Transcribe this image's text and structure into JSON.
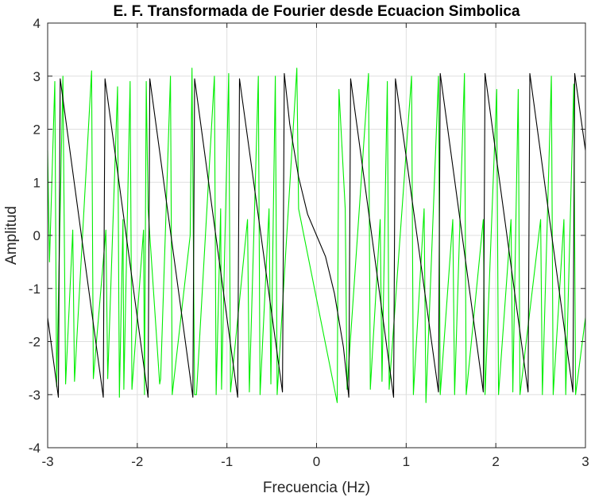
{
  "chart_data": {
    "type": "line",
    "title": "E. F. Transformada de Fourier desde Ecuacion Simbolica",
    "xlabel": "Frecuencia (Hz)",
    "ylabel": "Amplitud",
    "xlim": [
      -3,
      3
    ],
    "ylim": [
      -4,
      4
    ],
    "xticks": [
      -3,
      -2,
      -1,
      0,
      1,
      2,
      3
    ],
    "yticks": [
      -4,
      -3,
      -2,
      -1,
      0,
      1,
      2,
      3,
      4
    ],
    "xtick_labels": [
      "-3",
      "-2",
      "-1",
      "0",
      "1",
      "2",
      "3"
    ],
    "ytick_labels": [
      "-4",
      "-3",
      "-2",
      "-1",
      "0",
      "1",
      "2",
      "3",
      "4"
    ],
    "grid": true,
    "series": [
      {
        "color": "#00ee00",
        "x": [
          -3.0,
          -2.98,
          -2.92,
          -2.9,
          -2.83,
          -2.8,
          -2.72,
          -2.7,
          -2.51,
          -2.49,
          -2.35,
          -2.33,
          -2.22,
          -2.2,
          -2.16,
          -2.15,
          -2.08,
          -2.06,
          -1.93,
          -1.92,
          -1.9,
          -1.88,
          -1.75,
          -1.74,
          -1.63,
          -1.61,
          -1.41,
          -1.39,
          -1.36,
          -1.34,
          -1.14,
          -1.12,
          -1.07,
          -1.06,
          -0.98,
          -0.96,
          -0.77,
          -0.75,
          -0.65,
          -0.63,
          -0.53,
          -0.51,
          -0.46,
          -0.44,
          -0.22,
          -0.2,
          0.23,
          0.25,
          0.32,
          0.34,
          0.58,
          0.6,
          0.71,
          0.73,
          0.79,
          0.81,
          1.06,
          1.08,
          1.2,
          1.22,
          1.36,
          1.38,
          1.52,
          1.54,
          1.65,
          1.67,
          1.86,
          1.88,
          2.01,
          2.03,
          2.17,
          2.19,
          2.25,
          2.27,
          2.5,
          2.52,
          2.62,
          2.64,
          2.76,
          2.78,
          2.87,
          2.89,
          3.0
        ],
        "y": [
          1.6,
          -0.5,
          2.9,
          -2.85,
          3.0,
          -2.8,
          0.1,
          -2.75,
          3.1,
          -2.7,
          0.1,
          -2.7,
          2.8,
          -3.05,
          0.3,
          -2.9,
          2.9,
          -2.9,
          0.1,
          -3.0,
          2.9,
          0.5,
          -2.8,
          -2.7,
          3.0,
          -3.0,
          0.0,
          3.15,
          -3.0,
          -3.0,
          3.0,
          -3.0,
          0.5,
          -2.9,
          3.05,
          -2.95,
          0.3,
          -2.95,
          3.0,
          -3.0,
          0.5,
          -2.8,
          3.0,
          -3.0,
          3.15,
          0.5,
          -3.15,
          2.75,
          0.5,
          -2.9,
          3.05,
          -2.9,
          0.3,
          -2.75,
          2.9,
          -2.9,
          3.0,
          -3.0,
          0.5,
          -3.15,
          3.0,
          -3.0,
          0.3,
          -3.0,
          3.05,
          -3.0,
          0.3,
          -3.0,
          2.75,
          -3.0,
          0.3,
          -2.95,
          2.75,
          -3.0,
          0.3,
          -3.0,
          3.0,
          -3.0,
          0.3,
          -3.0,
          2.85,
          -3.0,
          -1.55
        ]
      },
      {
        "color": "#000000",
        "x": [
          -3.0,
          -2.88,
          -2.86,
          -2.38,
          -2.36,
          -1.88,
          -1.86,
          -1.38,
          -1.36,
          -0.88,
          -0.86,
          -0.38,
          -0.36,
          -0.3,
          -0.2,
          -0.1,
          0.0,
          0.1,
          0.2,
          0.3,
          0.36,
          0.38,
          0.86,
          0.88,
          1.36,
          1.38,
          1.86,
          1.88,
          2.36,
          2.38,
          2.86,
          2.88,
          3.0
        ],
        "y": [
          -1.55,
          -3.05,
          2.95,
          -3.05,
          2.95,
          -3.05,
          2.95,
          -3.05,
          2.95,
          -3.05,
          2.95,
          -2.95,
          3.05,
          2.1,
          1.1,
          0.4,
          0.0,
          -0.4,
          -1.1,
          -2.1,
          -3.05,
          2.95,
          -3.05,
          2.95,
          -2.95,
          3.05,
          -2.95,
          3.05,
          -2.95,
          3.05,
          -2.95,
          3.05,
          1.6
        ]
      }
    ]
  }
}
